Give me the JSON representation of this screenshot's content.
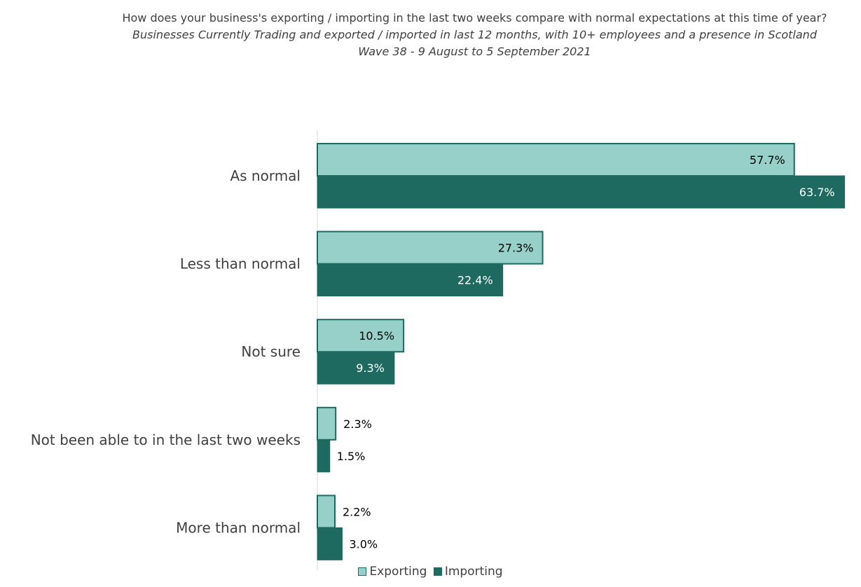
{
  "chart_data": {
    "type": "bar",
    "orientation": "horizontal",
    "title": "How does your business's exporting / importing in the last two weeks compare with normal expectations at this time of year?",
    "subtitle": "Businesses  Currently Trading and exported / imported in last 12 months, with 10+ employees and a presence in Scotland",
    "wave": "Wave 38 - 9 August to 5 September 2021",
    "categories": [
      "As normal",
      "Less than normal",
      "Not sure",
      "Not been able to in the last two weeks",
      "More than normal"
    ],
    "series": [
      {
        "name": "Exporting",
        "values": [
          57.7,
          27.3,
          10.5,
          2.3,
          2.2
        ],
        "labels": [
          "57.7%",
          "27.3%",
          "10.5%",
          "2.3%",
          "2.2%"
        ],
        "color": "#97d0c8",
        "stroke": "#1e6a60"
      },
      {
        "name": "Importing",
        "values": [
          63.7,
          22.4,
          9.3,
          1.5,
          3.0
        ],
        "labels": [
          "63.7%",
          "22.4%",
          "9.3%",
          "1.5%",
          "3.0%"
        ],
        "color": "#1e6a60",
        "stroke": "#1e6a60"
      }
    ],
    "xlim": [
      0,
      65
    ],
    "legend_position": "bottom",
    "grid": false
  }
}
